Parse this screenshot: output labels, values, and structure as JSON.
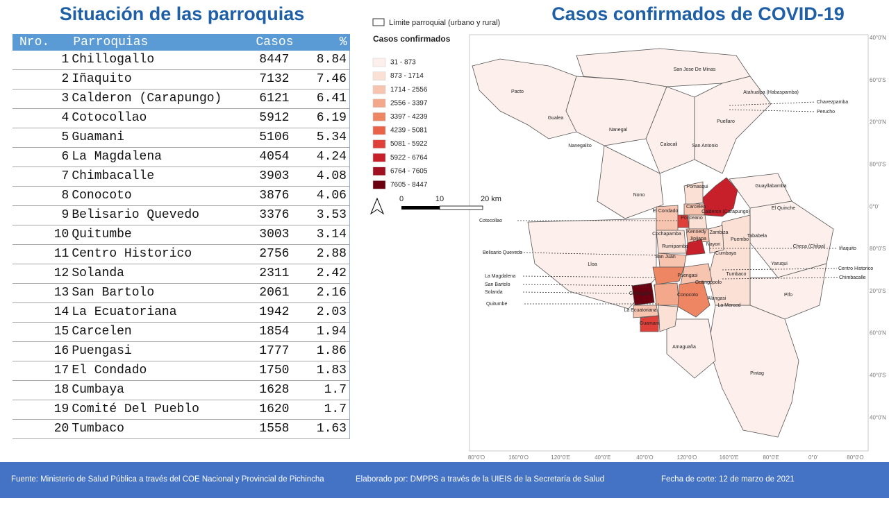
{
  "left_title": "Situación de las parroquias",
  "table": {
    "header": [
      "Nro.",
      "Parroquias",
      "Casos",
      "%"
    ],
    "rows": [
      [
        "1",
        "Chillogallo",
        "8447",
        "8.84"
      ],
      [
        "2",
        "Iñaquito",
        "7132",
        "7.46"
      ],
      [
        "3",
        "Calderon (Carapungo)",
        "6121",
        "6.41"
      ],
      [
        "4",
        "Cotocollao",
        "5912",
        "6.19"
      ],
      [
        "5",
        "Guamani",
        "5106",
        "5.34"
      ],
      [
        "6",
        "La Magdalena",
        "4054",
        "4.24"
      ],
      [
        "7",
        "Chimbacalle",
        "3903",
        "4.08"
      ],
      [
        "8",
        "Conocoto",
        "3876",
        "4.06"
      ],
      [
        "9",
        "Belisario Quevedo",
        "3376",
        "3.53"
      ],
      [
        "10",
        "Quitumbe",
        "3003",
        "3.14"
      ],
      [
        "11",
        "Centro Historico",
        "2756",
        "2.88"
      ],
      [
        "12",
        "Solanda",
        "2311",
        "2.42"
      ],
      [
        "13",
        "San Bartolo",
        "2061",
        "2.16"
      ],
      [
        "14",
        "La Ecuatoriana",
        "1942",
        "2.03"
      ],
      [
        "15",
        "Carcelen",
        "1854",
        "1.94"
      ],
      [
        "16",
        "Puengasi",
        "1777",
        "1.86"
      ],
      [
        "17",
        "El Condado",
        "1750",
        "1.83"
      ],
      [
        "18",
        "Cumbaya",
        "1628",
        "1.7"
      ],
      [
        "19",
        "Comité Del Pueblo",
        "1620",
        "1.7"
      ],
      [
        "20",
        "Tumbaco",
        "1558",
        "1.63"
      ]
    ]
  },
  "map": {
    "title": "Casos confirmados de COVID-19",
    "boundary_legend": "Límite parroquial (urbano y rural)",
    "legend_title": "Casos confirmados",
    "legend": [
      {
        "label": "31 - 873",
        "color": "#fdf0ec"
      },
      {
        "label": "873 - 1714",
        "color": "#fbe0d6"
      },
      {
        "label": "1714 - 2556",
        "color": "#f7c4b0"
      },
      {
        "label": "2556 - 3397",
        "color": "#f4a88b"
      },
      {
        "label": "3397 - 4239",
        "color": "#ee8664"
      },
      {
        "label": "4239 - 5081",
        "color": "#e8634a"
      },
      {
        "label": "5081 - 5922",
        "color": "#e0403a"
      },
      {
        "label": "5922 - 6764",
        "color": "#c8202a"
      },
      {
        "label": "6764 - 7605",
        "color": "#a01020"
      },
      {
        "label": "7605 - 8447",
        "color": "#6b0010"
      }
    ],
    "scale_labels": [
      "0",
      "10",
      "20 km"
    ],
    "parish_labels": [
      "Pacto",
      "San Jose De Minas",
      "Atahualpa (Habaspamba)",
      "Gualea",
      "Nanegal",
      "Nanegalito",
      "Calacali",
      "San Antonio",
      "Puellaro",
      "Guayllabamba",
      "Pomasqui",
      "El Condado",
      "Carcelen",
      "Calderon (Carapungo)",
      "Ponceano",
      "Kennedy",
      "Zambiza",
      "Cochapamba",
      "Jipijapa",
      "Rumipamba",
      "Nayon",
      "San Juan",
      "Nono",
      "Lloa",
      "El Quinche",
      "Checa (Chilpa)",
      "Yaruqui",
      "Tababela",
      "Puembo",
      "Cumbaya",
      "Tumbaco",
      "Puengasi",
      "Guangopolo",
      "Conocoto",
      "Alangasi",
      "La Merced",
      "Chillogallo",
      "La Ecuatoriana",
      "Guamani",
      "Amaguaña",
      "Pifo",
      "Pintag"
    ],
    "callouts": [
      "Cotocollao",
      "Belisario Quevedo",
      "La Magdalena",
      "San Bartolo",
      "Solanda",
      "Quitumbe",
      "Iñaquito",
      "Centro Historico",
      "Chimbacalle",
      "Chavezpamba",
      "Perucho"
    ],
    "lat_labels": [
      "40°0'N",
      "60°0'S",
      "20°0'N",
      "80°0'S",
      "0°0'",
      "80°0'S",
      "20°0'S",
      "60°0'N",
      "40°0'S",
      "40°0'N"
    ],
    "lon_labels": [
      "80°0'O",
      "160°0'O",
      "120°0'E",
      "40°0'E",
      "40°0'O",
      "120°0'O",
      "160°0'E",
      "80°0'E",
      "0°0'",
      "80°0'O"
    ]
  },
  "footer": [
    "Fuente: Ministerio de Salud Pública a través del COE Nacional y Provincial de Pichincha",
    "Elaborado por: DMPPS a través de la UIEIS de la Secretaría de Salud",
    "Fecha de corte: 12 de marzo de 2021"
  ]
}
